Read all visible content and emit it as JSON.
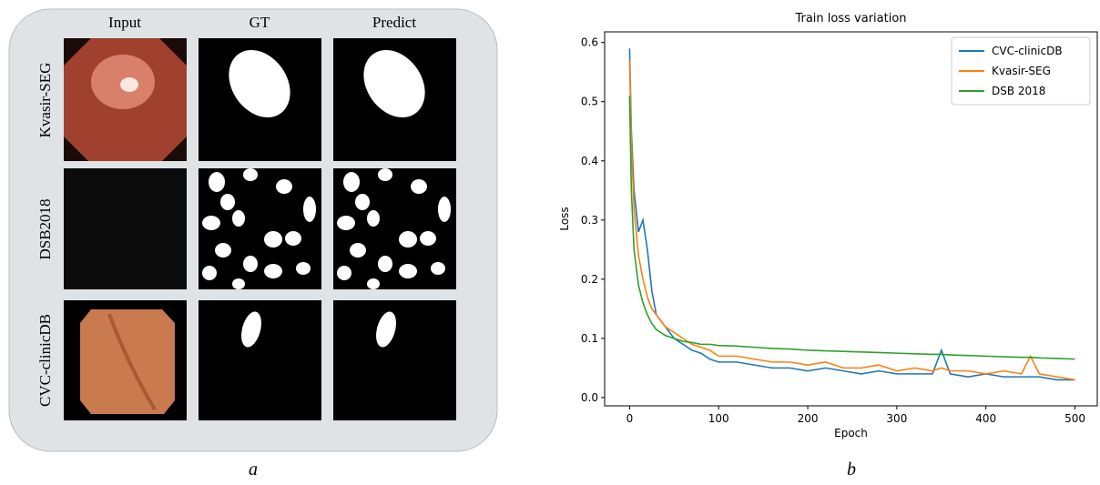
{
  "panel_a": {
    "columns": [
      "Input",
      "GT",
      "Predict"
    ],
    "rows": [
      "Kvasir-SEG",
      "DSB2018",
      "CVC-clinicDB"
    ],
    "caption": "a"
  },
  "caption_b": "b",
  "chart_data": {
    "type": "line",
    "title": "Train  loss variation",
    "xlabel": "Epoch",
    "ylabel": "Loss",
    "x": [
      0,
      2,
      5,
      10,
      15,
      20,
      25,
      30,
      40,
      50,
      60,
      70,
      80,
      90,
      100,
      120,
      140,
      160,
      180,
      200,
      220,
      240,
      260,
      280,
      300,
      320,
      340,
      350,
      360,
      380,
      400,
      420,
      440,
      450,
      460,
      480,
      500
    ],
    "series": [
      {
        "name": "CVC-clinicDB",
        "color": "#1f77b4",
        "values": [
          0.59,
          0.45,
          0.35,
          0.28,
          0.3,
          0.25,
          0.18,
          0.14,
          0.12,
          0.1,
          0.09,
          0.08,
          0.075,
          0.065,
          0.06,
          0.06,
          0.055,
          0.05,
          0.05,
          0.045,
          0.05,
          0.045,
          0.04,
          0.045,
          0.04,
          0.04,
          0.04,
          0.08,
          0.04,
          0.035,
          0.04,
          0.035,
          0.035,
          0.035,
          0.035,
          0.03,
          0.03
        ]
      },
      {
        "name": "Kvasir-SEG",
        "color": "#ff7f0e",
        "values": [
          0.57,
          0.43,
          0.32,
          0.24,
          0.2,
          0.17,
          0.15,
          0.14,
          0.12,
          0.11,
          0.1,
          0.09,
          0.085,
          0.08,
          0.07,
          0.07,
          0.065,
          0.06,
          0.06,
          0.055,
          0.06,
          0.05,
          0.05,
          0.055,
          0.045,
          0.05,
          0.045,
          0.05,
          0.045,
          0.045,
          0.04,
          0.045,
          0.04,
          0.07,
          0.04,
          0.035,
          0.03
        ]
      },
      {
        "name": "DSB 2018",
        "color": "#2ca02c",
        "values": [
          0.51,
          0.35,
          0.25,
          0.19,
          0.16,
          0.14,
          0.125,
          0.115,
          0.105,
          0.1,
          0.095,
          0.093,
          0.09,
          0.09,
          0.088,
          0.087,
          0.085,
          0.083,
          0.082,
          0.08,
          0.079,
          0.078,
          0.077,
          0.076,
          0.075,
          0.074,
          0.073,
          0.073,
          0.072,
          0.071,
          0.07,
          0.069,
          0.068,
          0.068,
          0.067,
          0.066,
          0.065
        ]
      }
    ],
    "xlim": [
      -28,
      525
    ],
    "ylim": [
      -0.014,
      0.618
    ],
    "xticks": [
      0,
      100,
      200,
      300,
      400,
      500
    ],
    "yticks": [
      {
        "value": 0,
        "label": "0.0"
      },
      0.1,
      0.2,
      0.3,
      0.4,
      0.5,
      0.6
    ],
    "legend": "upper right",
    "grid": false
  }
}
